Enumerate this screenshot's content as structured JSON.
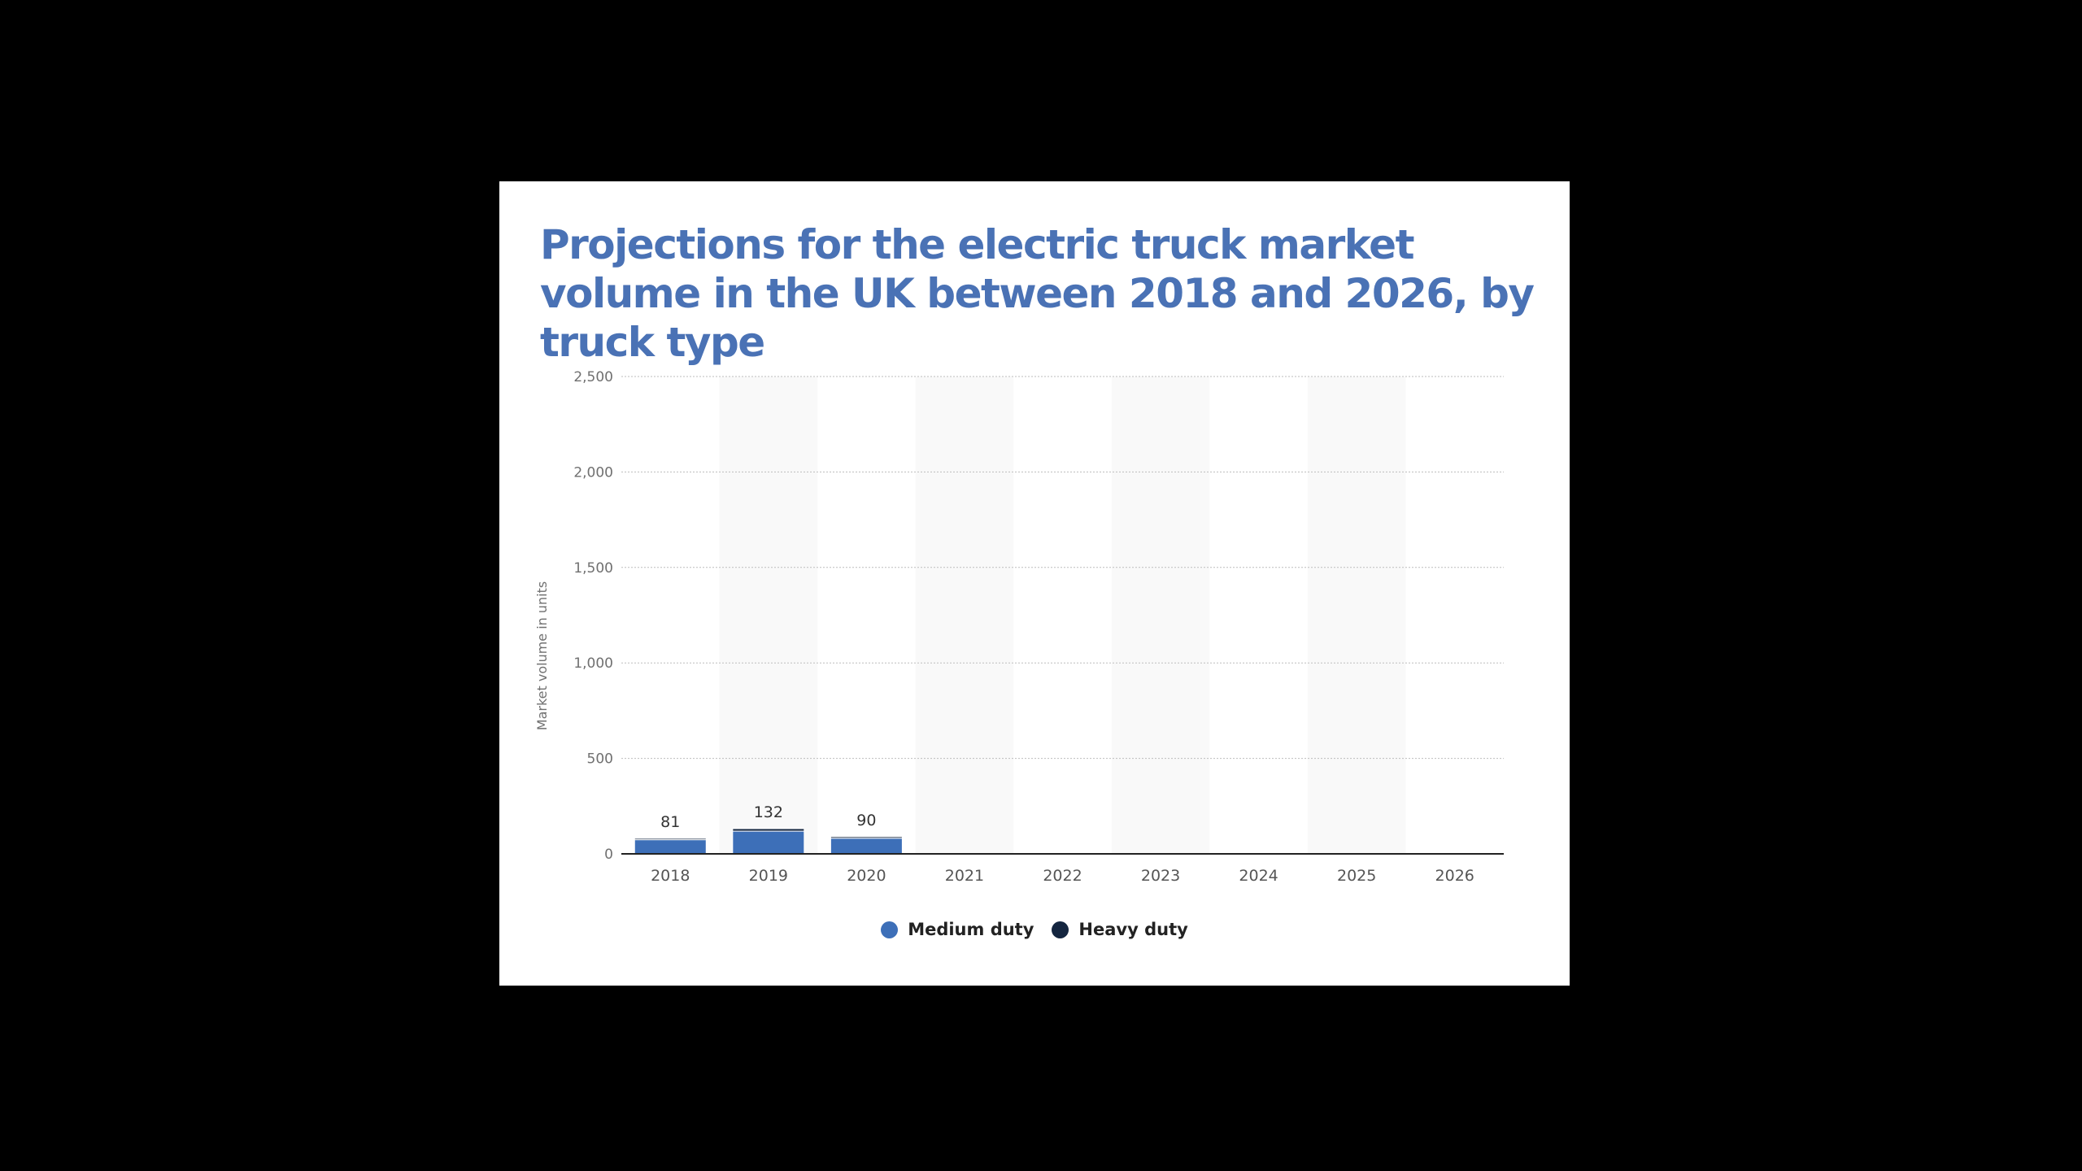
{
  "colors": {
    "background": "#000000",
    "title": "#4a72b5",
    "medium_duty": "#3d6fb8",
    "heavy_duty": "#14253f",
    "band": "#f9f9f9"
  },
  "chart_data": {
    "type": "bar",
    "stacked": true,
    "title": "Projections for the electric truck market volume in the UK between 2018 and 2026, by truck type",
    "ylabel": "Market volume in units",
    "xlabel": "",
    "ylim": [
      0,
      2500
    ],
    "yticks": [
      0,
      500,
      1000,
      1500,
      2000,
      2500
    ],
    "ytick_labels": [
      "0",
      "500",
      "1,000",
      "1,500",
      "2,000",
      "2,500"
    ],
    "grid": true,
    "legend": "bottom-center",
    "categories": [
      "2018",
      "2019",
      "2020",
      "2021",
      "2022",
      "2023",
      "2024",
      "2025",
      "2026"
    ],
    "series": [
      {
        "name": "Medium duty",
        "values": [
          74,
          119,
          82,
          0,
          0,
          0,
          0,
          0,
          0
        ]
      },
      {
        "name": "Heavy duty",
        "values": [
          7,
          13,
          8,
          0,
          0,
          0,
          0,
          0,
          0
        ]
      }
    ],
    "totals_labels": [
      "81",
      "132",
      "90",
      "",
      "",
      "",
      "",
      "",
      ""
    ]
  }
}
